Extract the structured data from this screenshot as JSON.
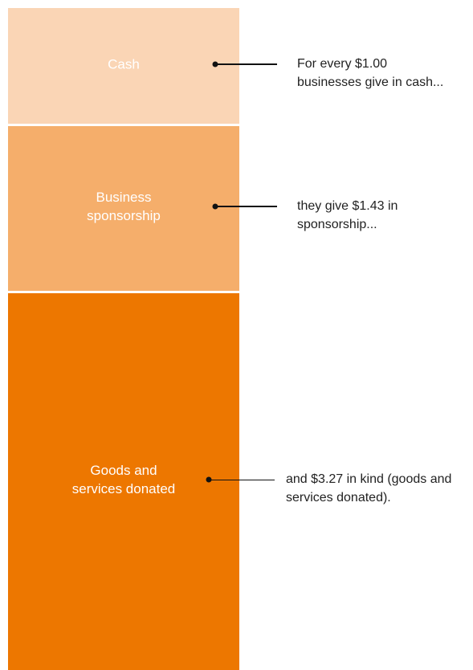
{
  "chart_data": {
    "type": "stacked-bar",
    "series": [
      {
        "name": "Cash",
        "color": "#fad5b5",
        "values": [
          1.0
        ]
      },
      {
        "name": "Business sponsorship",
        "color": "#f5ae6b",
        "values": [
          1.43
        ]
      },
      {
        "name": "Goods and services donated",
        "color": "#ed7700",
        "values": [
          3.27
        ]
      }
    ],
    "annotations": [
      "For every $1.00 businesses give in cash...",
      "they give $1.43 in sponsorship...",
      "and $3.27 in kind (goods and services donated)."
    ]
  }
}
